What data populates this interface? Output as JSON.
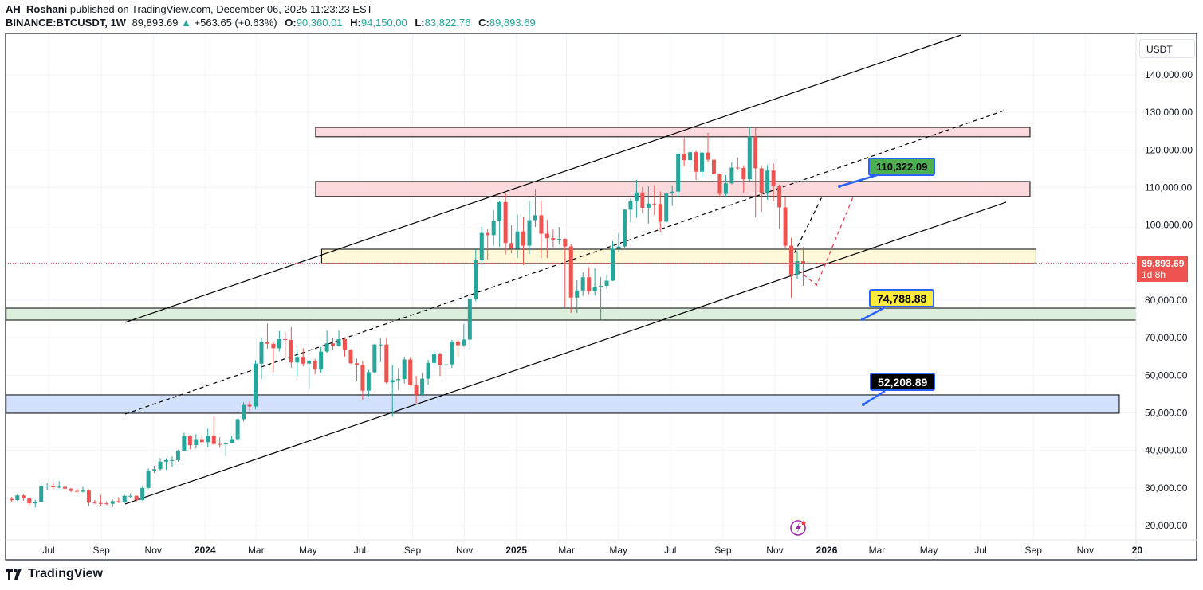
{
  "header": {
    "author": "AH_Roshani",
    "published": "published on TradingView.com, December 06, 2025 11:23:23 EST",
    "symbol": "BINANCE:BTCUSDT, 1W",
    "last": "89,893.69",
    "change": "+563.65 (+0.63%)",
    "o_label": "O:",
    "o": "90,360.01",
    "h_label": "H:",
    "h": "94,150.00",
    "l_label": "L:",
    "l": "83,822.76",
    "c_label": "C:",
    "c": "89,893.69"
  },
  "price_axis": {
    "currency": "USDT",
    "current_price": "89,893.69",
    "countdown": "1d 8h"
  },
  "callouts": [
    "110,322.09",
    "74,788.88",
    "52,208.89"
  ],
  "brand": "TradingView",
  "colors": {
    "up": "#26a69a",
    "down": "#ef5350",
    "accent": "#2962ff"
  },
  "chart_data": {
    "type": "candlestick",
    "interval": "1W",
    "ylim": [
      14000,
      150000
    ],
    "y_ticks": [
      140000,
      130000,
      120000,
      110000,
      100000,
      90000,
      80000,
      70000,
      60000,
      50000,
      40000,
      30000,
      20000
    ],
    "y_tick_labels": [
      "140,000.00",
      "130,000.00",
      "120,000.00",
      "110,000.00",
      "100,000.00",
      "",
      "80,000.00",
      "70,000.00",
      "60,000.00",
      "50,000.00",
      "40,000.00",
      "30,000.00",
      "20,000.00"
    ],
    "x_ticks": [
      {
        "label": "Jul",
        "date": "2023-07-01"
      },
      {
        "label": "Sep",
        "date": "2023-09-01"
      },
      {
        "label": "Nov",
        "date": "2023-11-01"
      },
      {
        "label": "2024",
        "date": "2024-01-01",
        "bold": true
      },
      {
        "label": "Mar",
        "date": "2024-03-01"
      },
      {
        "label": "May",
        "date": "2024-05-01"
      },
      {
        "label": "Jul",
        "date": "2024-07-01"
      },
      {
        "label": "Sep",
        "date": "2024-09-01"
      },
      {
        "label": "Nov",
        "date": "2024-11-01"
      },
      {
        "label": "2025",
        "date": "2025-01-01",
        "bold": true
      },
      {
        "label": "Mar",
        "date": "2025-03-01"
      },
      {
        "label": "May",
        "date": "2025-05-01"
      },
      {
        "label": "Jul",
        "date": "2025-07-01"
      },
      {
        "label": "Sep",
        "date": "2025-09-01"
      },
      {
        "label": "Nov",
        "date": "2025-11-01"
      },
      {
        "label": "2026",
        "date": "2026-01-01",
        "bold": true
      },
      {
        "label": "Mar",
        "date": "2026-03-01"
      },
      {
        "label": "May",
        "date": "2026-05-01"
      },
      {
        "label": "Jul",
        "date": "2026-07-01"
      },
      {
        "label": "Sep",
        "date": "2026-09-01"
      },
      {
        "label": "Nov",
        "date": "2026-11-01"
      },
      {
        "label": "20",
        "date": "2027-01-01",
        "bold": true
      }
    ],
    "grid": true,
    "candles": [
      [
        "2023-05-15",
        27100,
        27600,
        26300,
        26800
      ],
      [
        "2023-05-22",
        26800,
        28400,
        26600,
        28000
      ],
      [
        "2023-05-29",
        28000,
        28400,
        26600,
        27200
      ],
      [
        "2023-06-05",
        27200,
        27400,
        25400,
        25900
      ],
      [
        "2023-06-12",
        25900,
        26800,
        24800,
        26300
      ],
      [
        "2023-06-19",
        26300,
        31400,
        26200,
        30500
      ],
      [
        "2023-06-26",
        30500,
        31300,
        29500,
        30600
      ],
      [
        "2023-07-03",
        30600,
        31500,
        29700,
        30200
      ],
      [
        "2023-07-10",
        30200,
        31800,
        29900,
        30300
      ],
      [
        "2023-07-17",
        30300,
        30400,
        29600,
        29800
      ],
      [
        "2023-07-24",
        29800,
        30000,
        28900,
        29200
      ],
      [
        "2023-07-31",
        29200,
        29800,
        28600,
        29000
      ],
      [
        "2023-08-07",
        29000,
        30300,
        28800,
        29300
      ],
      [
        "2023-08-14",
        29300,
        29600,
        25200,
        26100
      ],
      [
        "2023-08-21",
        26100,
        26800,
        25800,
        26000
      ],
      [
        "2023-08-28",
        26000,
        28100,
        25300,
        25900
      ],
      [
        "2023-09-04",
        25900,
        26400,
        25400,
        25800
      ],
      [
        "2023-09-11",
        25800,
        26900,
        24900,
        26500
      ],
      [
        "2023-09-18",
        26500,
        27500,
        26000,
        26200
      ],
      [
        "2023-09-25",
        26200,
        28100,
        26000,
        27900
      ],
      [
        "2023-10-02",
        27900,
        28600,
        27200,
        27900
      ],
      [
        "2023-10-09",
        27900,
        28000,
        26500,
        26800
      ],
      [
        "2023-10-16",
        26800,
        30300,
        26600,
        30000
      ],
      [
        "2023-10-23",
        30000,
        35200,
        29800,
        34500
      ],
      [
        "2023-10-30",
        34500,
        35900,
        34000,
        35000
      ],
      [
        "2023-11-06",
        35000,
        38000,
        34500,
        37000
      ],
      [
        "2023-11-13",
        37000,
        37900,
        34800,
        37400
      ],
      [
        "2023-11-20",
        37400,
        38400,
        35600,
        37400
      ],
      [
        "2023-11-27",
        37400,
        40200,
        37000,
        39900
      ],
      [
        "2023-12-04",
        39900,
        44700,
        39800,
        43800
      ],
      [
        "2023-12-11",
        43800,
        44000,
        40300,
        41400
      ],
      [
        "2023-12-18",
        41400,
        44300,
        40500,
        43000
      ],
      [
        "2023-12-25",
        43000,
        43800,
        41400,
        42200
      ],
      [
        "2024-01-01",
        42200,
        45800,
        40800,
        43900
      ],
      [
        "2024-01-08",
        43900,
        49000,
        41500,
        41700
      ],
      [
        "2024-01-15",
        41700,
        43500,
        40700,
        41600
      ],
      [
        "2024-01-22",
        41600,
        42200,
        38500,
        42000
      ],
      [
        "2024-01-29",
        42000,
        43800,
        41900,
        43000
      ],
      [
        "2024-02-05",
        43000,
        48500,
        42600,
        48300
      ],
      [
        "2024-02-12",
        48300,
        52800,
        47700,
        52100
      ],
      [
        "2024-02-19",
        52100,
        53000,
        50500,
        51700
      ],
      [
        "2024-02-26",
        51700,
        64000,
        50900,
        63100
      ],
      [
        "2024-03-04",
        63100,
        70100,
        59000,
        68900
      ],
      [
        "2024-03-11",
        68900,
        73800,
        67100,
        68400
      ],
      [
        "2024-03-18",
        68400,
        68900,
        60800,
        67200
      ],
      [
        "2024-03-25",
        67200,
        71800,
        66400,
        69600
      ],
      [
        "2024-04-01",
        69600,
        71300,
        64500,
        69400
      ],
      [
        "2024-04-08",
        69400,
        72800,
        62000,
        63400
      ],
      [
        "2024-04-15",
        63400,
        66900,
        59600,
        64900
      ],
      [
        "2024-04-22",
        64900,
        67200,
        62400,
        63100
      ],
      [
        "2024-04-29",
        63100,
        64700,
        56500,
        63900
      ],
      [
        "2024-05-06",
        63900,
        64400,
        60200,
        61500
      ],
      [
        "2024-05-13",
        61500,
        67500,
        60700,
        66300
      ],
      [
        "2024-05-20",
        66300,
        71900,
        66000,
        68500
      ],
      [
        "2024-05-27",
        68500,
        70000,
        66600,
        67800
      ],
      [
        "2024-06-03",
        67800,
        71900,
        67600,
        69600
      ],
      [
        "2024-06-10",
        69600,
        70100,
        65000,
        66700
      ],
      [
        "2024-06-17",
        66700,
        67000,
        63000,
        63200
      ],
      [
        "2024-06-24",
        63200,
        64500,
        58400,
        62700
      ],
      [
        "2024-07-01",
        62700,
        63800,
        53500,
        55900
      ],
      [
        "2024-07-08",
        55900,
        61400,
        54300,
        60800
      ],
      [
        "2024-07-15",
        60800,
        68400,
        60600,
        68200
      ],
      [
        "2024-07-22",
        68200,
        70000,
        63500,
        68200
      ],
      [
        "2024-07-29",
        68200,
        70000,
        57800,
        58100
      ],
      [
        "2024-08-05",
        58100,
        62700,
        49000,
        58700
      ],
      [
        "2024-08-12",
        58700,
        61800,
        56100,
        59000
      ],
      [
        "2024-08-19",
        59000,
        65000,
        57800,
        64200
      ],
      [
        "2024-08-26",
        64200,
        64900,
        57200,
        57300
      ],
      [
        "2024-09-02",
        57300,
        59800,
        52500,
        54800
      ],
      [
        "2024-09-09",
        54800,
        60600,
        54500,
        59100
      ],
      [
        "2024-09-16",
        59100,
        64100,
        57500,
        63300
      ],
      [
        "2024-09-23",
        63300,
        66500,
        62700,
        65600
      ],
      [
        "2024-09-30",
        65600,
        66000,
        59800,
        62800
      ],
      [
        "2024-10-07",
        62800,
        64500,
        58900,
        62900
      ],
      [
        "2024-10-14",
        62900,
        69400,
        62000,
        69000
      ],
      [
        "2024-10-21",
        69000,
        69500,
        65000,
        68000
      ],
      [
        "2024-10-28",
        68000,
        73600,
        67500,
        69500
      ],
      [
        "2024-11-04",
        69500,
        81500,
        66800,
        80400
      ],
      [
        "2024-11-11",
        80400,
        93500,
        79700,
        90600
      ],
      [
        "2024-11-18",
        90600,
        99600,
        89300,
        97900
      ],
      [
        "2024-11-25",
        97900,
        98900,
        90800,
        97300
      ],
      [
        "2024-12-02",
        97300,
        104000,
        94500,
        101200
      ],
      [
        "2024-12-09",
        101200,
        106500,
        94200,
        106100
      ],
      [
        "2024-12-16",
        106100,
        108400,
        92200,
        95200
      ],
      [
        "2024-12-23",
        95200,
        99900,
        92500,
        93700
      ],
      [
        "2024-12-30",
        93700,
        102700,
        91200,
        98300
      ],
      [
        "2025-01-06",
        98300,
        102100,
        89300,
        94500
      ],
      [
        "2025-01-13",
        94500,
        106400,
        92200,
        101300
      ],
      [
        "2025-01-20",
        101300,
        109600,
        99500,
        102600
      ],
      [
        "2025-01-27",
        102600,
        106500,
        91200,
        97700
      ],
      [
        "2025-02-03",
        97700,
        101400,
        91200,
        96500
      ],
      [
        "2025-02-10",
        96500,
        98800,
        94100,
        96100
      ],
      [
        "2025-02-17",
        96100,
        99500,
        94800,
        96300
      ],
      [
        "2025-02-24",
        96300,
        96500,
        78200,
        94300
      ],
      [
        "2025-03-03",
        94300,
        95000,
        76600,
        80700
      ],
      [
        "2025-03-10",
        80700,
        85300,
        76600,
        82600
      ],
      [
        "2025-03-17",
        82600,
        87400,
        81100,
        86100
      ],
      [
        "2025-03-24",
        86100,
        88800,
        81600,
        82400
      ],
      [
        "2025-03-31",
        82400,
        88500,
        81200,
        83500
      ],
      [
        "2025-04-07",
        83500,
        86100,
        74500,
        83800
      ],
      [
        "2025-04-14",
        83800,
        86500,
        83000,
        85200
      ],
      [
        "2025-04-21",
        85200,
        95700,
        85100,
        93700
      ],
      [
        "2025-04-28",
        93700,
        97900,
        92800,
        94300
      ],
      [
        "2025-05-05",
        94300,
        104300,
        93400,
        104100
      ],
      [
        "2025-05-12",
        104100,
        107100,
        100800,
        106400
      ],
      [
        "2025-05-19",
        106400,
        112000,
        102000,
        108700
      ],
      [
        "2025-05-26",
        108700,
        110200,
        103100,
        104600
      ],
      [
        "2025-06-02",
        104600,
        110400,
        100400,
        105700
      ],
      [
        "2025-06-09",
        105700,
        110600,
        102600,
        105600
      ],
      [
        "2025-06-16",
        105600,
        108900,
        98200,
        100900
      ],
      [
        "2025-06-23",
        100900,
        108500,
        100500,
        108400
      ],
      [
        "2025-06-30",
        108400,
        110500,
        105100,
        108900
      ],
      [
        "2025-07-07",
        108900,
        119500,
        107500,
        119000
      ],
      [
        "2025-07-14",
        119000,
        123200,
        115700,
        117300
      ],
      [
        "2025-07-21",
        117300,
        120200,
        114700,
        119400
      ],
      [
        "2025-07-28",
        119400,
        119800,
        112000,
        114200
      ],
      [
        "2025-08-04",
        114200,
        119400,
        112700,
        119300
      ],
      [
        "2025-08-11",
        119300,
        124500,
        116800,
        117400
      ],
      [
        "2025-08-18",
        117400,
        117600,
        111700,
        113500
      ],
      [
        "2025-08-25",
        113500,
        113700,
        107300,
        108300
      ],
      [
        "2025-09-01",
        108300,
        113300,
        107300,
        111100
      ],
      [
        "2025-09-08",
        111100,
        116700,
        110800,
        115300
      ],
      [
        "2025-09-15",
        115300,
        118000,
        114700,
        115200
      ],
      [
        "2025-09-22",
        115200,
        115900,
        108600,
        112200
      ],
      [
        "2025-09-29",
        112200,
        126200,
        111800,
        123500
      ],
      [
        "2025-10-06",
        123500,
        126200,
        102000,
        115100
      ],
      [
        "2025-10-13",
        115100,
        115900,
        103500,
        108600
      ],
      [
        "2025-10-20",
        108600,
        116000,
        106700,
        114500
      ],
      [
        "2025-10-27",
        114500,
        116400,
        106300,
        110500
      ],
      [
        "2025-11-03",
        110500,
        110800,
        98900,
        104700
      ],
      [
        "2025-11-10",
        104700,
        107400,
        94000,
        94500
      ],
      [
        "2025-11-17",
        94500,
        96600,
        80600,
        86800
      ],
      [
        "2025-11-24",
        86800,
        93100,
        85500,
        90400
      ],
      [
        "2025-12-01",
        90360.01,
        94150.0,
        83822.76,
        89893.69
      ]
    ],
    "current_price": 89893.69,
    "drawings": {
      "trendlines": [
        {
          "name": "channel-upper",
          "style": "solid",
          "from": [
            "2023-09-29",
            74070
          ],
          "to": [
            "2026-06-08",
            150600
          ]
        },
        {
          "name": "channel-lower",
          "style": "solid",
          "from": [
            "2023-09-29",
            25730
          ],
          "to": [
            "2026-07-31",
            106080
          ]
        },
        {
          "name": "channel-mid",
          "style": "dashed",
          "from": [
            "2023-09-29",
            49690
          ],
          "to": [
            "2026-07-31",
            130670
          ]
        },
        {
          "name": "projection-black",
          "style": "dashed",
          "color": "#000000",
          "points": [
            [
              "2025-11-24",
              92600
            ],
            [
              "2025-12-27",
              107800
            ]
          ]
        },
        {
          "name": "projection-red",
          "style": "dashed",
          "color": "#f23645",
          "points": [
            [
              "2025-11-28",
              88000
            ],
            [
              "2025-12-20",
              84000
            ],
            [
              "2026-02-01",
              107500
            ]
          ]
        }
      ],
      "zones": [
        {
          "name": "resistance-zone-top",
          "from": "2024-05-10",
          "to": "2026-08-28",
          "top": 126000,
          "bottom": 123500,
          "fill": "#fcd9dc"
        },
        {
          "name": "resistance-zone-110k",
          "from": "2024-05-10",
          "to": "2026-08-28",
          "top": 111600,
          "bottom": 107600,
          "fill": "#fcd9dc"
        },
        {
          "name": "pivot-zone-90k",
          "from": "2024-05-17",
          "to": "2026-09-04",
          "top": 93570,
          "bottom": 89750,
          "fill": "#fff9d9"
        },
        {
          "name": "support-zone-75k",
          "from": "2023-05-12",
          "to": "2027-01-10",
          "top": 77880,
          "bottom": 74700,
          "fill": "#dcefdc"
        },
        {
          "name": "support-zone-52k",
          "from": "2023-05-12",
          "to": "2026-12-11",
          "top": 54780,
          "bottom": 49900,
          "fill": "#d3e0fb"
        }
      ]
    }
  }
}
